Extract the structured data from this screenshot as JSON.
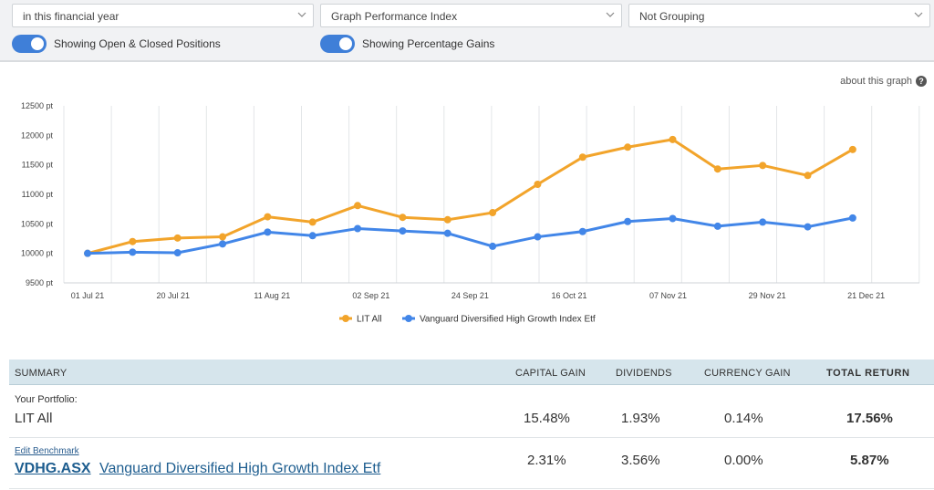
{
  "filters": {
    "period": "in this financial year",
    "graph_type": "Graph Performance Index",
    "grouping": "Not Grouping"
  },
  "toggles": {
    "positions_label": "Showing Open & Closed Positions",
    "positions_on": true,
    "gains_label": "Showing Percentage Gains",
    "gains_on": true
  },
  "about_link": "about this graph",
  "colors": {
    "lit_all": "#f2a42b",
    "benchmark": "#4286e8",
    "toggle_on": "#3f7fd8",
    "summary_header": "#d6e5ec"
  },
  "chart_data": {
    "type": "line",
    "title": "",
    "xlabel": "",
    "ylabel": "",
    "ylim": [
      9500,
      12500
    ],
    "y_ticks": [
      "12500 pt",
      "12000 pt",
      "11500 pt",
      "11000 pt",
      "10500 pt",
      "10000 pt",
      "9500 pt"
    ],
    "y_tick_values": [
      12500,
      12000,
      11500,
      11000,
      10500,
      10000,
      9500
    ],
    "x_tick_labels": [
      "01 Jul 21",
      "20 Jul 21",
      "11 Aug 21",
      "02 Sep 21",
      "24 Sep 21",
      "16 Oct 21",
      "07 Nov 21",
      "29 Nov 21",
      "21 Dec 21"
    ],
    "x": [
      "2021-07-01",
      "2021-07-11",
      "2021-07-21",
      "2021-07-31",
      "2021-08-10",
      "2021-08-20",
      "2021-08-30",
      "2021-09-09",
      "2021-09-19",
      "2021-09-29",
      "2021-10-09",
      "2021-10-19",
      "2021-10-29",
      "2021-11-08",
      "2021-11-18",
      "2021-11-28",
      "2021-12-08",
      "2021-12-18",
      "2021-12-28"
    ],
    "series": [
      {
        "name": "LIT All",
        "color": "#f2a42b",
        "values": [
          10000,
          10200,
          10260,
          10280,
          10620,
          10530,
          10810,
          10610,
          10570,
          10690,
          11170,
          11630,
          11800,
          11930,
          11430,
          11490,
          11320,
          11760,
          null
        ]
      },
      {
        "name": "Vanguard Diversified High Growth Index Etf",
        "color": "#4286e8",
        "values": [
          10000,
          10020,
          10010,
          10160,
          10360,
          10300,
          10420,
          10380,
          10340,
          10120,
          10280,
          10370,
          10540,
          10590,
          10460,
          10530,
          10450,
          10600,
          null
        ]
      }
    ],
    "grid": "vertical",
    "legend": "bottom-center"
  },
  "summary": {
    "headers": {
      "summary": "SUMMARY",
      "capital_gain": "CAPITAL GAIN",
      "dividends": "DIVIDENDS",
      "currency_gain": "CURRENCY GAIN",
      "total_return": "TOTAL RETURN"
    },
    "portfolio": {
      "caption": "Your Portfolio:",
      "name": "LIT All",
      "capital_gain": "15.48%",
      "dividends": "1.93%",
      "currency_gain": "0.14%",
      "total_return": "17.56%"
    },
    "benchmark": {
      "edit_label": "Edit Benchmark",
      "code": "VDHG.ASX",
      "name": "Vanguard Diversified High Growth Index Etf",
      "capital_gain": "2.31%",
      "dividends": "3.56%",
      "currency_gain": "0.00%",
      "total_return": "5.87%"
    }
  }
}
